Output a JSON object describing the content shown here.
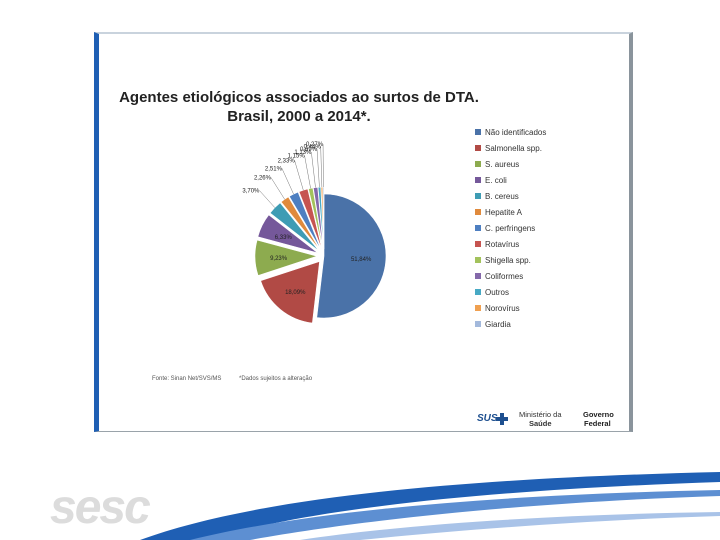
{
  "chart_data": {
    "type": "pie",
    "title": "Agentes etiológicos associados ao surtos de DTA.",
    "subtitle": "Brasil, 2000 a 2014*.",
    "slices": [
      {
        "label": "Não identificados",
        "value": 51.84,
        "display": "51,84%",
        "color": "#4a72a8"
      },
      {
        "label": "Salmonella spp.",
        "value": 18.09,
        "display": "18,09%",
        "color": "#b14a45"
      },
      {
        "label": "S. aureus",
        "value": 9.23,
        "display": "9,23%",
        "color": "#8dab4f"
      },
      {
        "label": "E. coli",
        "value": 6.33,
        "display": "6,33%",
        "color": "#75589a"
      },
      {
        "label": "B. cereus",
        "value": 3.7,
        "display": "3,70%",
        "color": "#3e9cb4"
      },
      {
        "label": "Hepatite A",
        "value": 2.26,
        "display": "2,26%",
        "color": "#e08a3c"
      },
      {
        "label": "C. perfringens",
        "value": 2.51,
        "display": "2,51%",
        "color": "#4e7fc1"
      },
      {
        "label": "Rotavírus",
        "value": 2.33,
        "display": "2,33%",
        "color": "#c65450"
      },
      {
        "label": "Shigella spp.",
        "value": 1.15,
        "display": "1,15%",
        "color": "#a3c25c"
      },
      {
        "label": "Coliformes",
        "value": 1.13,
        "display": "1,13%",
        "color": "#8468aa"
      },
      {
        "label": "Outros",
        "value": 0.69,
        "display": "0,69%",
        "color": "#47a9c4"
      },
      {
        "label": "Norovírus",
        "value": 0.44,
        "display": "0,44%",
        "color": "#f0a050"
      },
      {
        "label": "Giardia",
        "value": 0.27,
        "display": "0,27%",
        "color": "#a3b9dc"
      }
    ],
    "legend_position": "right"
  },
  "legend_labels": [
    "Não identificados",
    "Salmonella spp.",
    "S. aureus",
    "E. coli",
    "B. cereus",
    "Hepatite A",
    "C. perfringens",
    "Rotavírus",
    "Shigella spp.",
    "Coliformes",
    "Outros",
    "Norovírus",
    "Giardia"
  ],
  "footer": {
    "source": "Fonte: Sinan Net/SVS/MS",
    "note": "*Dados sujeitos a alteração"
  },
  "logos": {
    "sus": "SUS",
    "ministerio_line1": "Ministério da",
    "ministerio_line2": "Saúde",
    "governo_line1": "Governo",
    "governo_line2": "Federal",
    "sesc": "sesc"
  }
}
